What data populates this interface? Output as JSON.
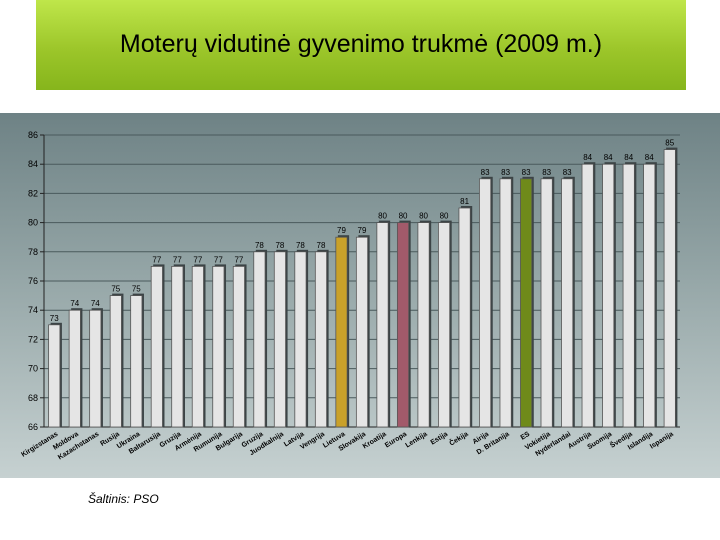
{
  "title": "Moterų vidutinė gyvenimo trukmė (2009 m.)",
  "source": "Šaltinis: PSO",
  "colors": {
    "bar": "#e5e5e5",
    "bar_edge": "#555555",
    "lithuania": "#c9a12a",
    "europe": "#a25a6a",
    "eu": "#6f8a1a"
  },
  "chart_data": {
    "type": "bar",
    "title": "",
    "xlabel": "",
    "ylabel": "",
    "ylim": [
      66,
      86
    ],
    "yticks": [
      66,
      68,
      70,
      72,
      74,
      76,
      78,
      80,
      82,
      84,
      86
    ],
    "grid": true,
    "categories": [
      "Kirgizstanas",
      "Moldova",
      "Kazachstanas",
      "Rusija",
      "Ukraina",
      "Baltarusija",
      "Gruzija",
      "Armėnija",
      "Rumunija",
      "Bulgarija",
      "Gruzija",
      "Juodkalnija",
      "Latvija",
      "Vengrija",
      "Lietuva",
      "Slovakija",
      "Kroatija",
      "Europa",
      "Lenkija",
      "Estija",
      "Čekija",
      "Airija",
      "D. Britanija",
      "ES",
      "Vokietija",
      "Nyderlandai",
      "Austrija",
      "Suomija",
      "Švedija",
      "Islandija",
      "Ispanija"
    ],
    "values": [
      73,
      74,
      74,
      75,
      75,
      77,
      77,
      77,
      77,
      77,
      78,
      78,
      78,
      78,
      79,
      79,
      80,
      80,
      80,
      80,
      81,
      83,
      83,
      83,
      83,
      83,
      84,
      84,
      84,
      84,
      85
    ],
    "data_labels": [
      "73",
      "74",
      "74",
      "75",
      "75",
      "77",
      "77",
      "77",
      "77",
      "77",
      "78",
      "78",
      "78",
      "78",
      "79",
      "79",
      "80",
      "80",
      "80",
      "80",
      "81",
      "83",
      "83",
      "83",
      "83",
      "83",
      "84",
      "84",
      "84",
      "84",
      "85"
    ],
    "highlight": {
      "Lietuva": "lithuania",
      "Europa": "europe",
      "ES": "eu"
    }
  }
}
